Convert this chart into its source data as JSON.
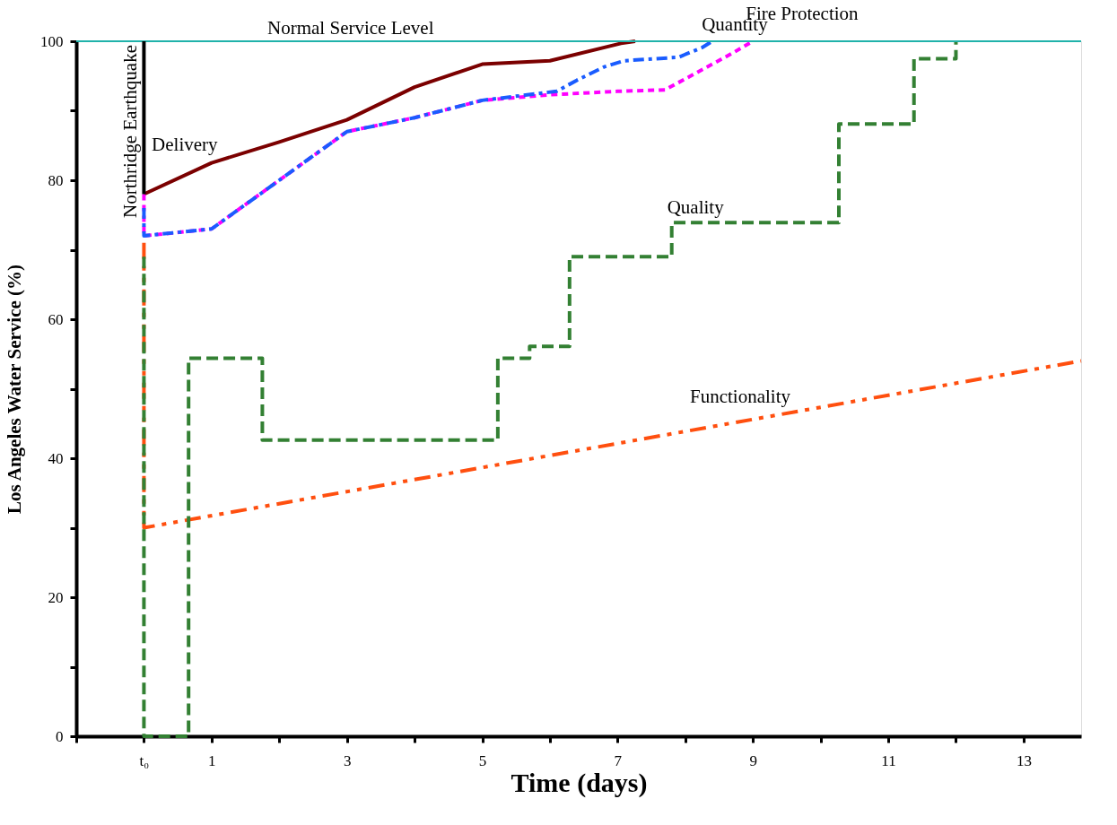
{
  "chart_data": {
    "type": "line",
    "xlabel": "Time (days)",
    "ylabel": "Los Angeles Water Service (%)",
    "xlim": [
      -1,
      13.85
    ],
    "ylim": [
      0,
      100
    ],
    "xticks": [
      {
        "value": -1,
        "label": null
      },
      {
        "value": 0,
        "label": "t₀"
      },
      1,
      {
        "value": 2,
        "label": null
      },
      3,
      {
        "value": 4,
        "label": null
      },
      5,
      {
        "value": 6,
        "label": null
      },
      7,
      {
        "value": 8,
        "label": null
      },
      9,
      {
        "value": 10,
        "label": null
      },
      11,
      {
        "value": 12,
        "label": null
      },
      13
    ],
    "yticks": [
      0,
      {
        "value": 10,
        "label": null
      },
      20,
      {
        "value": 30,
        "label": null
      },
      40,
      {
        "value": 50,
        "label": null
      },
      60,
      {
        "value": 70,
        "label": null
      },
      80,
      {
        "value": 90,
        "label": null
      },
      100
    ],
    "grid": false,
    "legend": false,
    "series": [
      {
        "name": "Delivery",
        "color": "#7b0000",
        "line_style": "solid",
        "x": [
          0,
          1,
          2,
          3,
          4,
          5,
          6,
          7.05,
          7.26
        ],
        "values": [
          78,
          82.5,
          85.5,
          88.7,
          93.4,
          96.7,
          97.2,
          99.7,
          100
        ]
      },
      {
        "name": "Quantity",
        "color": "#1a5cff",
        "line_style": "dashdot",
        "x": [
          0,
          0,
          1,
          2,
          3,
          4,
          5,
          6.1,
          6.4,
          6.8,
          7.1,
          7.9,
          8.25,
          8.4
        ],
        "values": [
          76,
          72,
          73,
          80,
          87,
          89,
          91.5,
          92.8,
          94.4,
          96.3,
          97.2,
          97.7,
          99.1,
          100
        ]
      },
      {
        "name": "Fire Protection",
        "color": "#ff00ff",
        "line_style": "dotted",
        "x": [
          0,
          0,
          1,
          2,
          3,
          4,
          5,
          6,
          7,
          7.7,
          8.7,
          9
        ],
        "values": [
          78,
          72,
          73,
          80,
          87,
          89,
          91.5,
          92.3,
          92.8,
          93,
          98.3,
          100
        ]
      },
      {
        "name": "Quality",
        "color": "#338033",
        "type": "step",
        "line_style": "dashed",
        "x": [
          0,
          0,
          0.66,
          1.75,
          5.23,
          5.7,
          6.29,
          7.8,
          10.27,
          11.38,
          12
        ],
        "values": [
          69,
          0,
          54.4,
          42.6,
          54.4,
          56.1,
          69,
          73.9,
          88.1,
          97.5,
          100
        ]
      },
      {
        "name": "Functionality",
        "color": "#ff4f0f",
        "line_style": "dashdotdot",
        "x": [
          0,
          0,
          13.85
        ],
        "values": [
          71,
          30,
          54
        ]
      }
    ],
    "ref_lines": [
      {
        "axis": "y",
        "value": 100,
        "label": "Normal Service Level",
        "color": "#20b2aa"
      },
      {
        "axis": "x",
        "value": 0,
        "label": "Northridge Earthquake",
        "color": "#000000"
      }
    ]
  }
}
